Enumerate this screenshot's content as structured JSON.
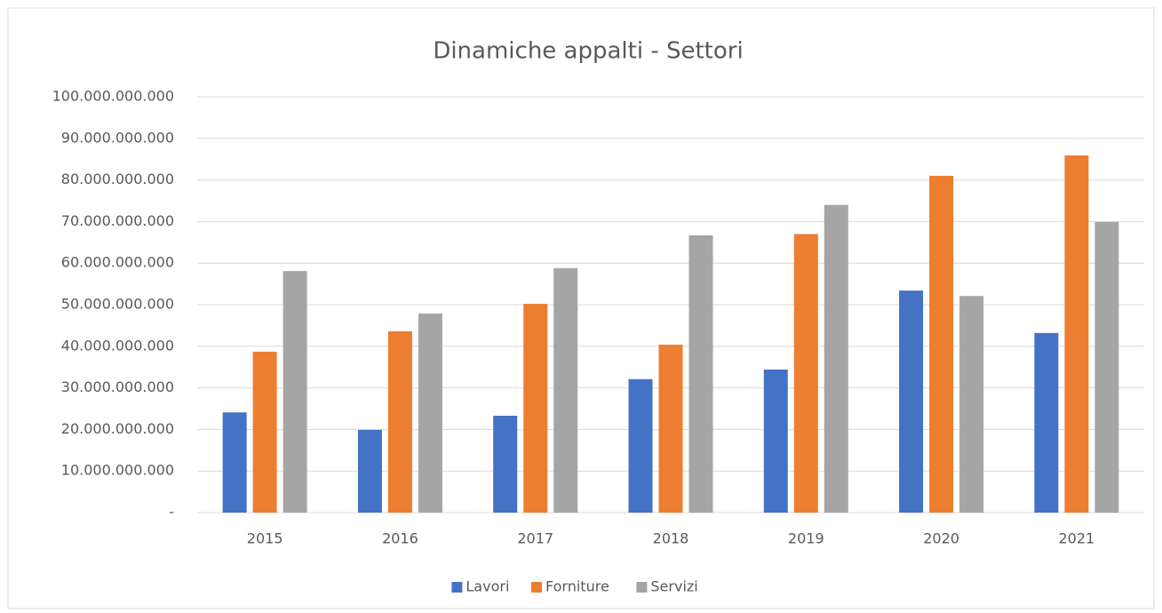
{
  "chart_data": {
    "type": "bar",
    "title": "Dinamiche appalti - Settori",
    "categories": [
      "2015",
      "2016",
      "2017",
      "2018",
      "2019",
      "2020",
      "2021"
    ],
    "series": [
      {
        "name": "Lavori",
        "color": "#4472c4",
        "values": [
          24100000000,
          19900000000,
          23300000000,
          32100000000,
          34400000000,
          53400000000,
          43200000000
        ]
      },
      {
        "name": "Forniture",
        "color": "#ed7d31",
        "values": [
          38700000000,
          43600000000,
          50200000000,
          40400000000,
          67000000000,
          81000000000,
          85900000000
        ]
      },
      {
        "name": "Servizi",
        "color": "#a5a5a5",
        "values": [
          58100000000,
          47900000000,
          58800000000,
          66700000000,
          74000000000,
          52100000000,
          69900000000
        ]
      }
    ],
    "ylim": [
      0,
      100000000000
    ],
    "yticks": [
      {
        "value": 0,
        "label": "-"
      },
      {
        "value": 10000000000,
        "label": "10.000.000.000"
      },
      {
        "value": 20000000000,
        "label": "20.000.000.000"
      },
      {
        "value": 30000000000,
        "label": "30.000.000.000"
      },
      {
        "value": 40000000000,
        "label": "40.000.000.000"
      },
      {
        "value": 50000000000,
        "label": "50.000.000.000"
      },
      {
        "value": 60000000000,
        "label": "60.000.000.000"
      },
      {
        "value": 70000000000,
        "label": "70.000.000.000"
      },
      {
        "value": 80000000000,
        "label": "80.000.000.000"
      },
      {
        "value": 90000000000,
        "label": "90.000.000.000"
      },
      {
        "value": 100000000000,
        "label": "100.000.000.000"
      }
    ],
    "grid": true,
    "legend": "bottom"
  }
}
